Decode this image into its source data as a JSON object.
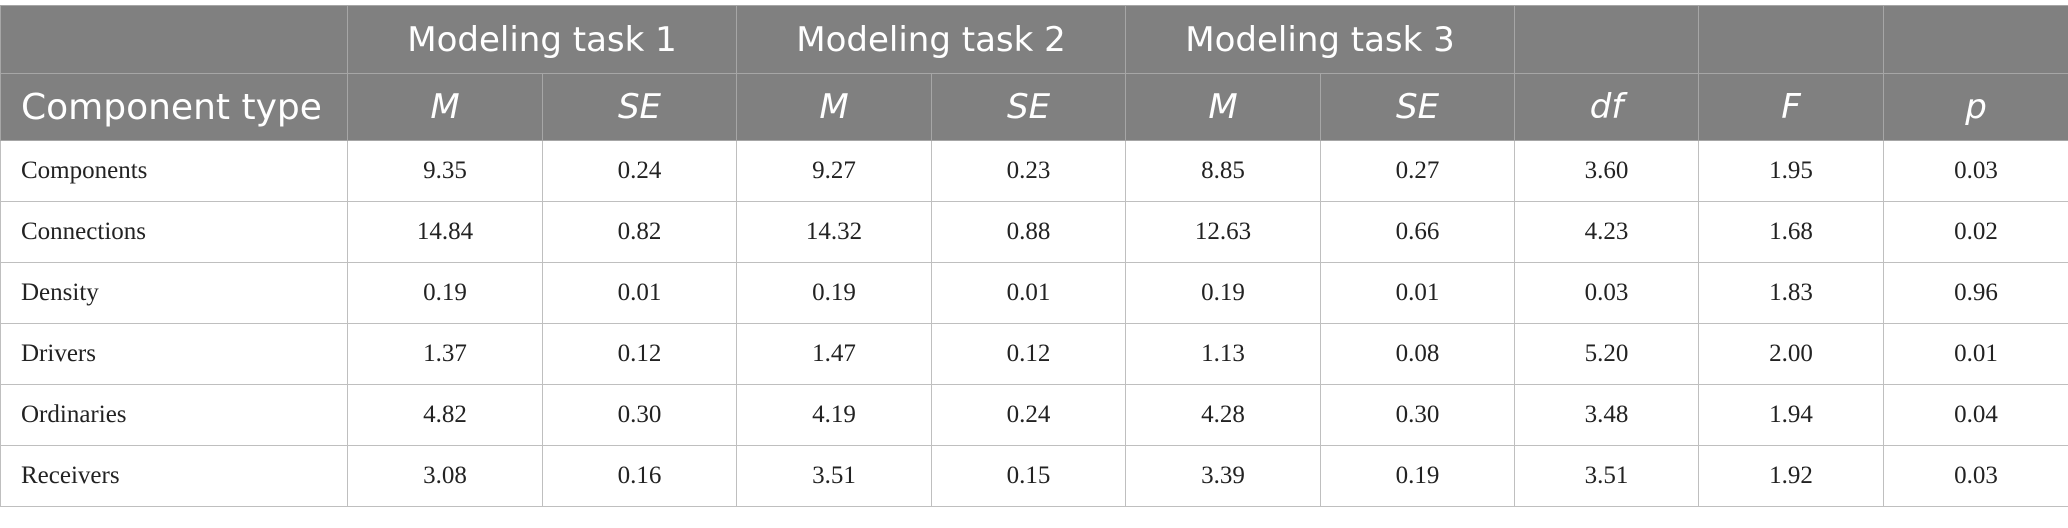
{
  "header": {
    "groups": [
      "Modeling task 1",
      "Modeling task 2",
      "Modeling task 3"
    ],
    "first_column": "Component type",
    "sub": {
      "m1": "M",
      "se1": "SE",
      "m2": "M",
      "se2": "SE",
      "m3": "M",
      "se3": "SE",
      "df": "df",
      "f": "F",
      "p": "p"
    }
  },
  "rows": [
    {
      "label": "Components",
      "cells": [
        "9.35",
        "0.24",
        "9.27",
        "0.23",
        "8.85",
        "0.27",
        "3.60",
        "1.95",
        "0.03"
      ]
    },
    {
      "label": "Connections",
      "cells": [
        "14.84",
        "0.82",
        "14.32",
        "0.88",
        "12.63",
        "0.66",
        "4.23",
        "1.68",
        "0.02"
      ]
    },
    {
      "label": "Density",
      "cells": [
        "0.19",
        "0.01",
        "0.19",
        "0.01",
        "0.19",
        "0.01",
        "0.03",
        "1.83",
        "0.96"
      ]
    },
    {
      "label": "Drivers",
      "cells": [
        "1.37",
        "0.12",
        "1.47",
        "0.12",
        "1.13",
        "0.08",
        "5.20",
        "2.00",
        "0.01"
      ]
    },
    {
      "label": "Ordinaries",
      "cells": [
        "4.82",
        "0.30",
        "4.19",
        "0.24",
        "4.28",
        "0.30",
        "3.48",
        "1.94",
        "0.04"
      ]
    },
    {
      "label": "Receivers",
      "cells": [
        "3.08",
        "0.16",
        "3.51",
        "0.15",
        "3.39",
        "0.19",
        "3.51",
        "1.92",
        "0.03"
      ]
    }
  ]
}
